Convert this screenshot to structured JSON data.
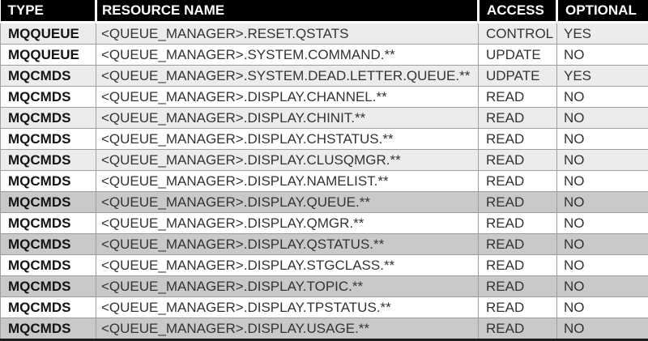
{
  "chart_data": {
    "type": "table",
    "title": "",
    "columns": [
      "TYPE",
      "RESOURCE NAME",
      "ACCESS",
      "OPTIONAL"
    ],
    "rows": [
      [
        "MQQUEUE",
        "<QUEUE_MANAGER>.RESET.QSTATS",
        "CONTROL",
        "YES"
      ],
      [
        "MQQUEUE",
        "<QUEUE_MANAGER>.SYSTEM.COMMAND.**",
        "UPDATE",
        "NO"
      ],
      [
        "MQCMDS",
        "<QUEUE_MANAGER>.SYSTEM.DEAD.LETTER.QUEUE.**",
        "UDPATE",
        "YES"
      ],
      [
        "MQCMDS",
        "<QUEUE_MANAGER>.DISPLAY.CHANNEL.**",
        "READ",
        "NO"
      ],
      [
        "MQCMDS",
        "<QUEUE_MANAGER>.DISPLAY.CHINIT.**",
        "READ",
        "NO"
      ],
      [
        "MQCMDS",
        "<QUEUE_MANAGER>.DISPLAY.CHSTATUS.**",
        "READ",
        "NO"
      ],
      [
        "MQCMDS",
        "<QUEUE_MANAGER>.DISPLAY.CLUSQMGR.**",
        "READ",
        "NO"
      ],
      [
        "MQCMDS",
        "<QUEUE_MANAGER>.DISPLAY.NAMELIST.**",
        "READ",
        "NO"
      ],
      [
        "MQCMDS",
        "<QUEUE_MANAGER>.DISPLAY.QUEUE.**",
        "READ",
        "NO"
      ],
      [
        "MQCMDS",
        "<QUEUE_MANAGER>.DISPLAY.QMGR.**",
        "READ",
        "NO"
      ],
      [
        "MQCMDS",
        "<QUEUE_MANAGER>.DISPLAY.QSTATUS.**",
        "READ",
        "NO"
      ],
      [
        "MQCMDS",
        "<QUEUE_MANAGER>.DISPLAY.STGCLASS.**",
        "READ",
        "NO"
      ],
      [
        "MQCMDS",
        "<QUEUE_MANAGER>.DISPLAY.TOPIC.**",
        "READ",
        "NO"
      ],
      [
        "MQCMDS",
        "<QUEUE_MANAGER>.DISPLAY.TPSTATUS.**",
        "READ",
        "NO"
      ],
      [
        "MQCMDS",
        "<QUEUE_MANAGER>.DISPLAY.USAGE.**",
        "READ",
        "NO"
      ]
    ],
    "row_shades": [
      "light",
      "white",
      "light",
      "white",
      "light",
      "white",
      "light",
      "white",
      "dark",
      "white",
      "dark",
      "white",
      "dark",
      "white",
      "dark"
    ],
    "layout_hints": {
      "grid": true,
      "header_style": "inverse"
    },
    "colors": {
      "header_bg": "#000000",
      "header_text": "#ffffff",
      "row_light": "#ececec",
      "row_white": "#ffffff",
      "row_dark": "#c9c9c9",
      "grid_line": "#9e9e9e",
      "bottom_border": "#1c1c1c"
    }
  }
}
